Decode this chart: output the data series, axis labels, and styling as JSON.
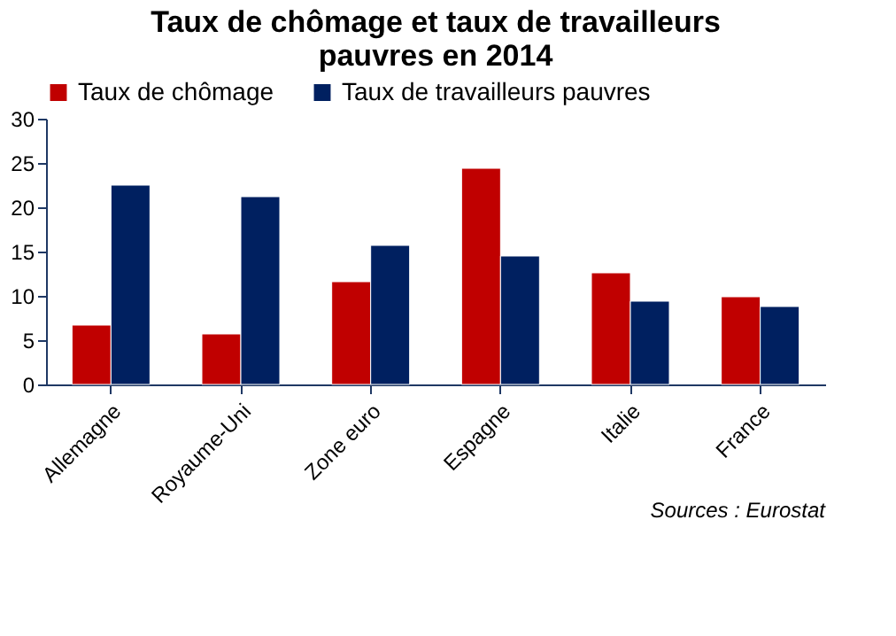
{
  "chart_data": {
    "type": "bar",
    "title": [
      "Taux de chômage et taux de travailleurs",
      "pauvres en 2014"
    ],
    "categories": [
      "Allemagne",
      "Royaume-Uni",
      "Zone euro",
      "Espagne",
      "Italie",
      "France"
    ],
    "series": [
      {
        "name": "Taux de chômage",
        "color": "#c00000",
        "values": [
          6.7,
          5.7,
          11.6,
          24.4,
          12.6,
          9.9
        ]
      },
      {
        "name": "Taux de travailleurs pauvres",
        "color": "#002060",
        "values": [
          22.5,
          21.2,
          15.7,
          14.5,
          9.4,
          8.8
        ]
      }
    ],
    "ylim": [
      0,
      30
    ],
    "yticks": [
      0,
      5,
      10,
      15,
      20,
      25,
      30
    ],
    "grid": false,
    "legend": "top",
    "annotations": [
      "Sources :  Eurostat"
    ]
  }
}
